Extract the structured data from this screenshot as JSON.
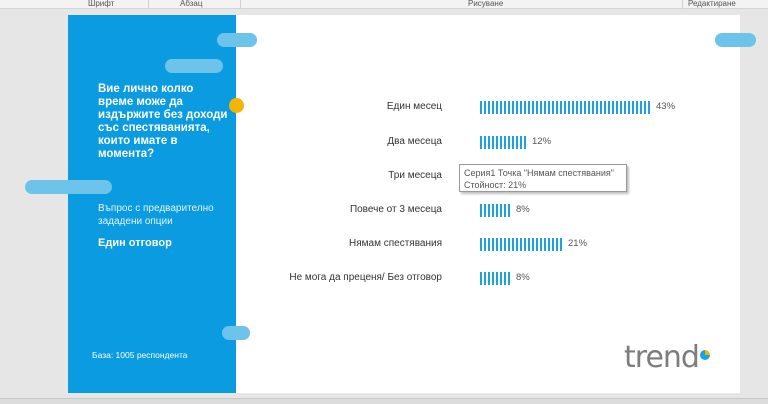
{
  "ribbon": {
    "groups": [
      "Шрифт",
      "Абзац",
      "Рисуване",
      "Редактиране"
    ]
  },
  "panel": {
    "question": "Вие лично колко време може да издържите без доходи със спестяванията, които имате в момента?",
    "subtitle": "Въпрос с предварително зададени опции",
    "answer_type": "Един отговор",
    "base": "База: 1005 респондента"
  },
  "chart_data": {
    "type": "bar",
    "orientation": "horizontal",
    "categories": [
      "Един месец",
      "Два месеца",
      "Три месеца",
      "Повече от 3 месеца",
      "Нямам спестявания",
      "Не мога да преценя/ Без отговор"
    ],
    "values": [
      43,
      12,
      null,
      8,
      21,
      8
    ],
    "labels": [
      "43%",
      "12%",
      "",
      "8%",
      "21%",
      "8%"
    ],
    "color": "#1aa3e0",
    "grid": false
  },
  "tooltip": {
    "line1": "Серия1 Точка \"Нямам спестявания\"",
    "line2": "Стойност: 21%"
  },
  "logo": "trend",
  "colors": {
    "panel": "#0a9be0",
    "accent": "#f5b400",
    "bubble": "#6ec3ea"
  }
}
